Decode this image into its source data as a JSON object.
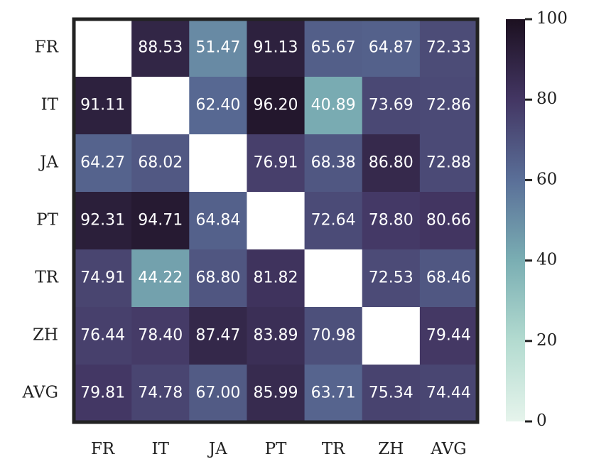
{
  "chart_data": {
    "type": "heatmap",
    "x_categories": [
      "FR",
      "IT",
      "JA",
      "PT",
      "TR",
      "ZH",
      "AVG"
    ],
    "y_categories": [
      "FR",
      "IT",
      "JA",
      "PT",
      "TR",
      "ZH",
      "AVG"
    ],
    "values": [
      [
        null,
        88.53,
        51.47,
        91.13,
        65.67,
        64.87,
        72.33
      ],
      [
        91.11,
        null,
        62.4,
        96.2,
        40.89,
        73.69,
        72.86
      ],
      [
        64.27,
        68.02,
        null,
        76.91,
        68.38,
        86.8,
        72.88
      ],
      [
        92.31,
        94.71,
        64.84,
        null,
        72.64,
        78.8,
        80.66
      ],
      [
        74.91,
        44.22,
        68.8,
        81.82,
        null,
        72.53,
        68.46
      ],
      [
        76.44,
        78.4,
        87.47,
        83.89,
        70.98,
        null,
        79.44
      ],
      [
        79.81,
        74.78,
        67.0,
        85.99,
        63.71,
        75.34,
        74.44
      ]
    ],
    "value_labels": [
      [
        null,
        "88.53",
        "51.47",
        "91.13",
        "65.67",
        "64.87",
        "72.33"
      ],
      [
        "91.11",
        null,
        "62.40",
        "96.20",
        "40.89",
        "73.69",
        "72.86"
      ],
      [
        "64.27",
        "68.02",
        null,
        "76.91",
        "68.38",
        "86.80",
        "72.88"
      ],
      [
        "92.31",
        "94.71",
        "64.84",
        null,
        "72.64",
        "78.80",
        "80.66"
      ],
      [
        "74.91",
        "44.22",
        "68.80",
        "81.82",
        null,
        "72.53",
        "68.46"
      ],
      [
        "76.44",
        "78.40",
        "87.47",
        "83.89",
        "70.98",
        null,
        "79.44"
      ],
      [
        "79.81",
        "74.78",
        "67.00",
        "85.99",
        "63.71",
        "75.34",
        "74.44"
      ]
    ],
    "colorbar_lim": [
      0,
      100
    ],
    "colorbar_ticks": [
      0,
      20,
      40,
      60,
      80,
      100
    ],
    "colormap": [
      "#e6f4ec",
      "#b3dbd0",
      "#7aaeb3",
      "#5a6f98",
      "#433663",
      "#1c1020"
    ]
  }
}
